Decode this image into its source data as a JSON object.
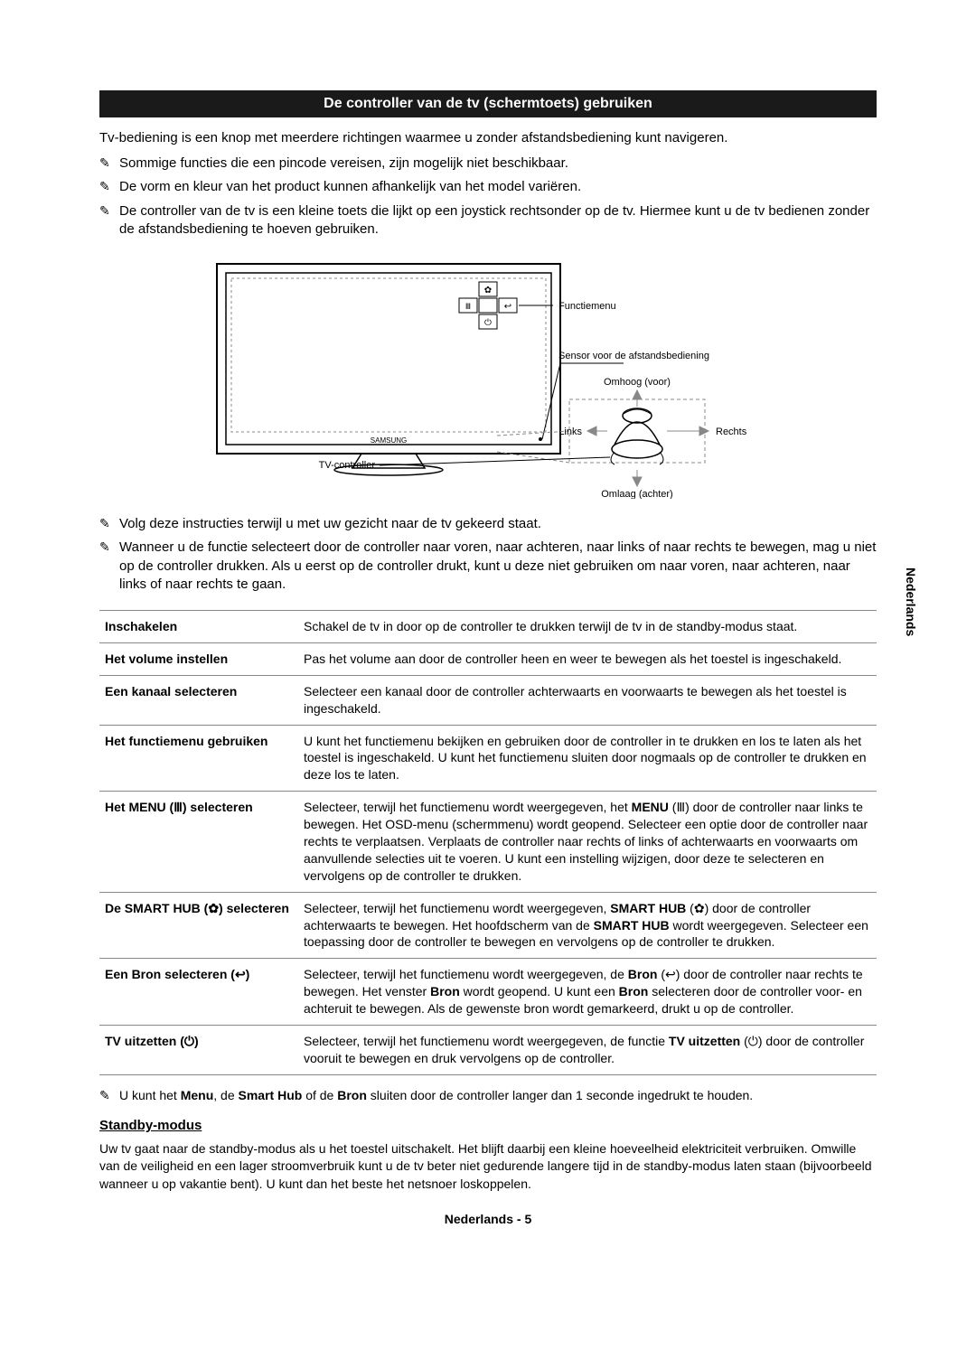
{
  "banner": "De controller van de tv (schermtoets) gebruiken",
  "intro": "Tv-bediening is een knop met meerdere richtingen waarmee u zonder afstandsbediening kunt navigeren.",
  "notes_top": [
    "Sommige functies die een pincode vereisen, zijn mogelijk niet beschikbaar.",
    "De vorm en kleur van het product kunnen afhankelijk van het model variëren.",
    "De controller van de tv is een kleine toets die lijkt op een joystick rechtsonder op de tv. Hiermee kunt u de tv bedienen zonder de afstandsbediening te hoeven gebruiken."
  ],
  "diagram": {
    "label_function_menu": "Functiemenu",
    "label_remote_sensor": "Sensor voor de afstandsbediening",
    "label_up": "Omhoog (voor)",
    "label_down": "Omlaag (achter)",
    "label_left": "Links",
    "label_right": "Rechts",
    "label_tv_controller": "TV-controller",
    "brand": "SAMSUNG"
  },
  "notes_mid": [
    "Volg deze instructies terwijl u met uw gezicht naar de tv gekeerd staat.",
    "Wanneer u de functie selecteert door de controller naar voren, naar achteren, naar links of naar rechts te bewegen, mag u niet op de controller drukken. Als u eerst op de controller drukt, kunt u deze niet gebruiken om naar voren, naar achteren, naar links of naar rechts te gaan."
  ],
  "table": [
    {
      "label": "Inschakelen",
      "desc_html": "Schakel de tv in door op de controller te drukken terwijl de tv in de standby-modus staat."
    },
    {
      "label": "Het volume instellen",
      "desc_html": "Pas het volume aan door de controller heen en weer te bewegen als het toestel is ingeschakeld."
    },
    {
      "label": "Een kanaal selecteren",
      "desc_html": "Selecteer een kanaal door de controller achterwaarts en voorwaarts te bewegen als het toestel is ingeschakeld."
    },
    {
      "label": "Het functiemenu gebruiken",
      "desc_html": "U kunt het functiemenu bekijken en gebruiken door de controller in te drukken en los te laten als het toestel is ingeschakeld. U kunt het functiemenu sluiten door nogmaals op de controller te drukken en deze los te laten."
    },
    {
      "label": "Het MENU (Ⅲ) selecteren",
      "desc_html": "Selecteer, terwijl het functiemenu wordt weergegeven, het <b>MENU</b> (Ⅲ) door de controller naar links te bewegen. Het OSD-menu (schermmenu) wordt geopend. Selecteer een optie door de controller naar rechts te verplaatsen. Verplaats de controller naar rechts of links of achterwaarts en voorwaarts om aanvullende selecties uit te voeren. U kunt een instelling wijzigen, door deze te selecteren en vervolgens op de controller te drukken."
    },
    {
      "label": "De SMART HUB (✿) selecteren",
      "desc_html": "Selecteer, terwijl het functiemenu wordt weergegeven, <b>SMART HUB</b> (✿) door de controller achterwaarts te bewegen. Het hoofdscherm van de <b>SMART HUB</b> wordt weergegeven. Selecteer een toepassing door de controller te bewegen en vervolgens op de controller te drukken."
    },
    {
      "label": "Een Bron selecteren (↩)",
      "desc_html": "Selecteer, terwijl het functiemenu wordt weergegeven, de <b>Bron</b> (↩) door de controller naar rechts te bewegen. Het venster <b>Bron</b> wordt geopend. U kunt een <b>Bron</b> selecteren door de controller voor- en achteruit te bewegen. Als de gewenste bron wordt gemarkeerd, drukt u op de controller."
    },
    {
      "label": "TV uitzetten (⏻)",
      "desc_html": "Selecteer, terwijl het functiemenu wordt weergegeven, de functie <b>TV uitzetten</b> (⏻) door de controller vooruit te bewegen en druk vervolgens op de controller."
    }
  ],
  "footnote_html": "U kunt het <b>Menu</b>, de <b>Smart Hub</b> of de <b>Bron</b> sluiten door de controller langer dan 1 seconde ingedrukt te houden.",
  "standby_heading": "Standby-modus",
  "standby_body": "Uw tv gaat naar de standby-modus als u het toestel uitschakelt. Het blijft daarbij een kleine hoeveelheid elektriciteit verbruiken. Omwille van de veiligheid en een lager stroomverbruik kunt u de tv beter niet gedurende langere tijd in de standby-modus laten staan (bijvoorbeeld wanneer u op vakantie bent). U kunt dan het beste het netsnoer loskoppelen.",
  "page_footer": "Nederlands - 5",
  "side_tab": "Nederlands",
  "colors": {
    "banner_bg": "#1a1a1a",
    "banner_fg": "#ffffff",
    "rule": "#888888"
  }
}
